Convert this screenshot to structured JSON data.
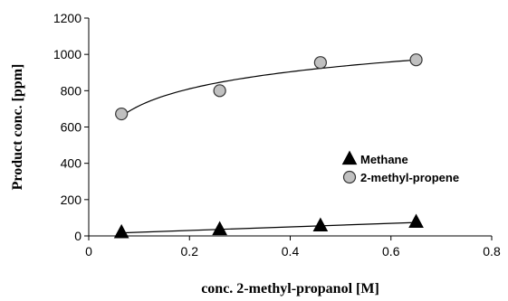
{
  "chart_data": {
    "type": "scatter",
    "xlabel": "conc. 2-methyl-propanol [M]",
    "ylabel": "Product conc. [ppm]",
    "xlim": [
      0,
      0.8
    ],
    "ylim": [
      0,
      1200
    ],
    "x_ticks": [
      0,
      0.2,
      0.4,
      0.6,
      0.8
    ],
    "x_tick_labels": [
      "0",
      "0.2",
      "0.4",
      "0.6",
      "0.8"
    ],
    "y_ticks": [
      0,
      200,
      400,
      600,
      800,
      1000,
      1200
    ],
    "y_tick_labels": [
      "0",
      "200",
      "400",
      "600",
      "800",
      "1000",
      "1200"
    ],
    "grid": false,
    "legend_position": "right",
    "series": [
      {
        "name": "Methane",
        "marker": "triangle",
        "color": "#000000",
        "trendline": "linear",
        "x": [
          0.065,
          0.26,
          0.46,
          0.65
        ],
        "y": [
          18,
          35,
          55,
          75
        ]
      },
      {
        "name": "2-methyl-propene",
        "marker": "circle",
        "color": "#c0c0c0",
        "trendline": "logarithmic",
        "x": [
          0.065,
          0.26,
          0.46,
          0.65
        ],
        "y": [
          672,
          800,
          955,
          970
        ]
      }
    ]
  }
}
